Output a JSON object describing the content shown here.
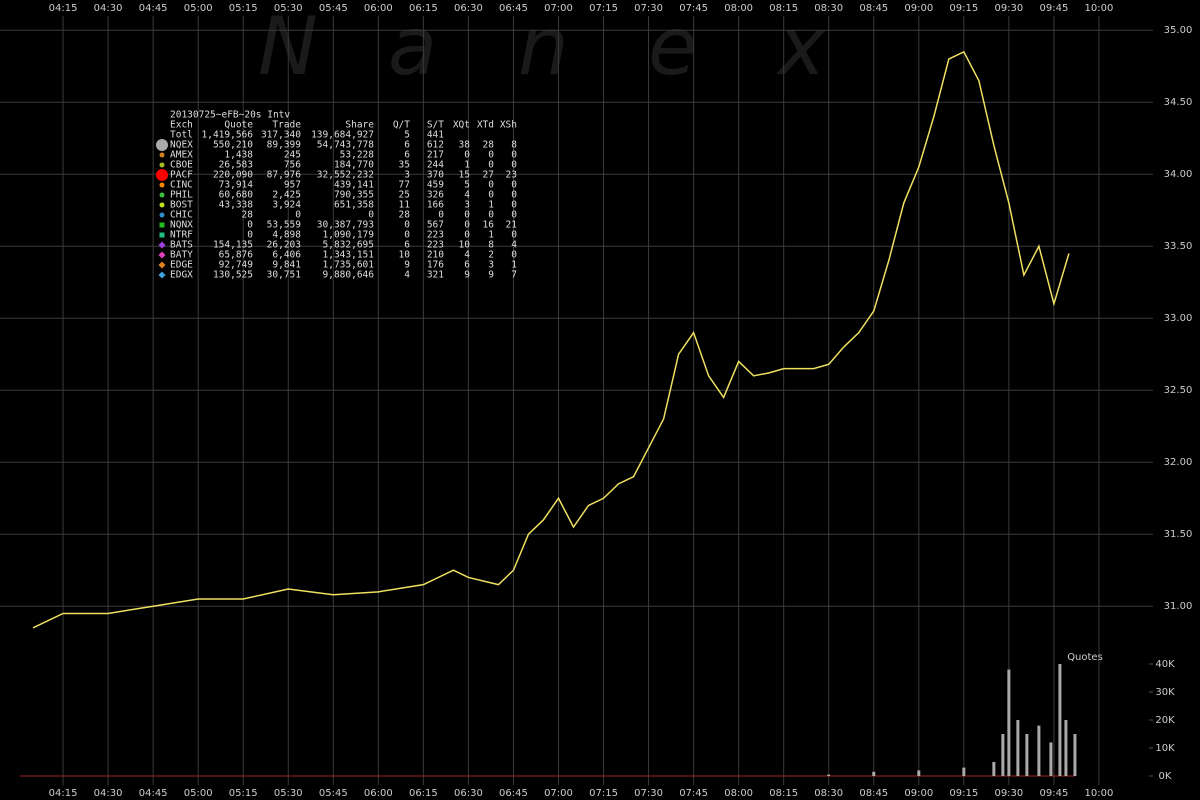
{
  "chart_data": [
    {
      "type": "line",
      "watermark": [
        "N",
        "a",
        "n",
        "e",
        "x"
      ],
      "xlim": [
        "03:54",
        "10:18"
      ],
      "xticks": [
        "04:15",
        "04:30",
        "04:45",
        "05:00",
        "05:15",
        "05:30",
        "05:45",
        "06:00",
        "06:15",
        "06:30",
        "06:45",
        "07:00",
        "07:15",
        "07:30",
        "07:45",
        "08:00",
        "08:15",
        "08:30",
        "08:45",
        "09:00",
        "09:15",
        "09:30",
        "09:45",
        "10:00"
      ],
      "ylim": [
        30.71,
        35.21
      ],
      "yticks": [
        {
          "value": 31,
          "label": "31.00"
        },
        {
          "value": 31.5,
          "label": "31.50"
        },
        {
          "value": 32,
          "label": "32.00"
        },
        {
          "value": 32.5,
          "label": "32.50"
        },
        {
          "value": 33,
          "label": "33.00"
        },
        {
          "value": 33.5,
          "label": "33.50"
        },
        {
          "value": 34,
          "label": "34.00"
        },
        {
          "value": 34.5,
          "label": "34.50"
        },
        {
          "value": 35,
          "label": "35.00"
        }
      ],
      "grid": true,
      "x": [
        "04:05",
        "04:15",
        "04:30",
        "04:45",
        "05:00",
        "05:15",
        "05:30",
        "05:45",
        "06:00",
        "06:15",
        "06:25",
        "06:30",
        "06:40",
        "06:45",
        "06:50",
        "06:55",
        "07:00",
        "07:05",
        "07:10",
        "07:15",
        "07:20",
        "07:25",
        "07:30",
        "07:35",
        "07:40",
        "07:45",
        "07:50",
        "07:55",
        "08:00",
        "08:05",
        "08:10",
        "08:15",
        "08:20",
        "08:25",
        "08:30",
        "08:35",
        "08:40",
        "08:45",
        "08:50",
        "08:55",
        "09:00",
        "09:05",
        "09:10",
        "09:15",
        "09:20",
        "09:25",
        "09:30",
        "09:35",
        "09:40",
        "09:45",
        "09:50"
      ],
      "series": [
        {
          "color": "#f0e060",
          "values": [
            30.85,
            30.95,
            30.95,
            31.0,
            31.05,
            31.05,
            31.12,
            31.08,
            31.1,
            31.15,
            31.25,
            31.2,
            31.15,
            31.25,
            31.5,
            31.6,
            31.75,
            31.55,
            31.7,
            31.75,
            31.85,
            31.9,
            32.1,
            32.3,
            32.75,
            32.9,
            32.6,
            32.45,
            32.7,
            32.6,
            32.62,
            32.65,
            32.65,
            32.65,
            32.68,
            32.8,
            32.9,
            33.05,
            33.4,
            33.8,
            34.05,
            34.4,
            34.8,
            34.85,
            34.65,
            34.2,
            33.8,
            33.3,
            33.5,
            33.1,
            33.45
          ]
        }
      ]
    },
    {
      "type": "bar",
      "title": "Quotes",
      "xlim": [
        "03:54",
        "10:18"
      ],
      "ylim": [
        0,
        45000
      ],
      "yticks": [
        {
          "value": 0,
          "label": "0K"
        },
        {
          "value": 10000,
          "label": "10K"
        },
        {
          "value": 20000,
          "label": "20K"
        },
        {
          "value": 30000,
          "label": "30K"
        },
        {
          "value": 40000,
          "label": "40K"
        }
      ],
      "x": [
        "08:30",
        "08:45",
        "09:00",
        "09:15",
        "09:25",
        "09:28",
        "09:30",
        "09:33",
        "09:36",
        "09:40",
        "09:44",
        "09:47",
        "09:49",
        "09:52"
      ],
      "color": "#aaaaaa",
      "values": [
        500,
        1500,
        2000,
        3000,
        5000,
        15000,
        38000,
        20000,
        15000,
        18000,
        12000,
        40000,
        20000,
        15000
      ]
    }
  ],
  "stats_table": {
    "title": "20130725~eFB~20s Intv",
    "header": [
      "Exch",
      "Quote",
      "Trade",
      "Share",
      "Q/T",
      "S/T",
      "XQt",
      "XTd",
      "XSh"
    ],
    "rows": [
      [
        "Totl",
        "1,419,566",
        "317,340",
        "139,684,927",
        "5",
        "441"
      ],
      [
        "NQEX",
        "550,210",
        "89,399",
        "54,743,778",
        "6",
        "612",
        "38",
        "28",
        "8"
      ],
      [
        "AMEX",
        "1,438",
        "245",
        "53,228",
        "6",
        "217",
        "0",
        "0",
        "0"
      ],
      [
        "CBOE",
        "26,583",
        "756",
        "184,770",
        "35",
        "244",
        "1",
        "0",
        "0"
      ],
      [
        "PACF",
        "220,090",
        "87,976",
        "32,552,232",
        "3",
        "370",
        "15",
        "27",
        "23"
      ],
      [
        "CINC",
        "73,914",
        "957",
        "439,141",
        "77",
        "459",
        "5",
        "0",
        "0"
      ],
      [
        "PHIL",
        "60,680",
        "2,425",
        "790,355",
        "25",
        "326",
        "4",
        "0",
        "0"
      ],
      [
        "BOST",
        "43,338",
        "3,924",
        "651,358",
        "11",
        "166",
        "3",
        "1",
        "0"
      ],
      [
        "CHIC",
        "28",
        "0",
        "0",
        "28",
        "0",
        "0",
        "0",
        "0"
      ],
      [
        "NQNX",
        "0",
        "53,559",
        "30,387,793",
        "0",
        "567",
        "0",
        "16",
        "21"
      ],
      [
        "NTRF",
        "0",
        "4,898",
        "1,090,179",
        "0",
        "223",
        "0",
        "1",
        "0"
      ],
      [
        "BATS",
        "154,135",
        "26,203",
        "5,832,695",
        "6",
        "223",
        "10",
        "8",
        "4"
      ],
      [
        "BATY",
        "65,876",
        "6,406",
        "1,343,151",
        "10",
        "210",
        "4",
        "2",
        "0"
      ],
      [
        "EDGE",
        "92,749",
        "9,841",
        "1,735,601",
        "9",
        "176",
        "6",
        "3",
        "1"
      ],
      [
        "EDGX",
        "130,525",
        "30,751",
        "9,880,646",
        "4",
        "321",
        "9",
        "9",
        "7"
      ]
    ],
    "row_markers": [
      null,
      {
        "shape": "circle",
        "size": 6,
        "color": "#aaaaaa"
      },
      {
        "shape": "circle",
        "size": 2.5,
        "color": "#d08020"
      },
      {
        "shape": "circle",
        "size": 2.5,
        "color": "#a0c020"
      },
      {
        "shape": "circle",
        "size": 6,
        "color": "#ff0000"
      },
      {
        "shape": "circle",
        "size": 2.5,
        "color": "#ff8800"
      },
      {
        "shape": "circle",
        "size": 2.5,
        "color": "#40c040"
      },
      {
        "shape": "circle",
        "size": 2.5,
        "color": "#c0e020"
      },
      {
        "shape": "circle",
        "size": 2.5,
        "color": "#3090d0"
      },
      {
        "shape": "square",
        "size": 2.5,
        "color": "#20c020"
      },
      {
        "shape": "square",
        "size": 2.5,
        "color": "#20c080"
      },
      {
        "shape": "diamond",
        "size": 3.5,
        "color": "#a040e0"
      },
      {
        "shape": "diamond",
        "size": 3.5,
        "color": "#e040c0"
      },
      {
        "shape": "diamond",
        "size": 3.5,
        "color": "#e08020"
      },
      {
        "shape": "diamond",
        "size": 3.5,
        "color": "#40a0e0"
      }
    ]
  }
}
